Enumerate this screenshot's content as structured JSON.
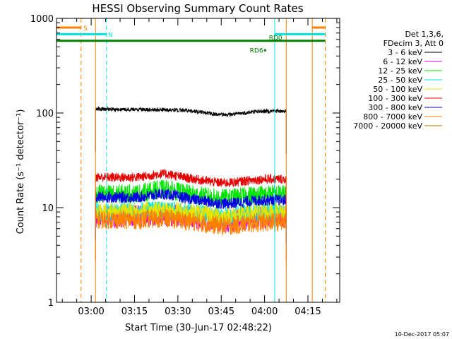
{
  "chart_data": {
    "type": "line",
    "title": "HESSI Observing Summary Count Rates",
    "xlabel": "Start Time (30-Jun-17 02:48:22)",
    "ylabel": "Count Rate (s⁻¹ detector⁻¹)",
    "yscale": "log",
    "ylim": [
      1,
      1000
    ],
    "xlim_minutes_after_02_48": [
      0,
      98
    ],
    "y_ticks": [
      "1",
      "10",
      "100",
      "1000"
    ],
    "x_ticks": [
      {
        "label": "03:00",
        "min": 12
      },
      {
        "label": "03:15",
        "min": 27
      },
      {
        "label": "03:30",
        "min": 42
      },
      {
        "label": "03:45",
        "min": 57
      },
      {
        "label": "04:00",
        "min": 72
      },
      {
        "label": "04:15",
        "min": 87
      }
    ],
    "legend": {
      "placement": "right",
      "header": [
        "Det 1,3,6,",
        "FDecim 3, Att 0"
      ],
      "entries": [
        {
          "label": "3 - 6 keV",
          "color": "#000000"
        },
        {
          "label": "6 - 12 keV",
          "color": "#e400e4"
        },
        {
          "label": "12 - 25 keV",
          "color": "#00e400"
        },
        {
          "label": "25 - 50 keV",
          "color": "#00e4e4"
        },
        {
          "label": "50 - 100 keV",
          "color": "#e4e400"
        },
        {
          "label": "100 - 300 keV",
          "color": "#e40000"
        },
        {
          "label": "300 - 800 keV",
          "color": "#0000e4"
        },
        {
          "label": "800 - 7000 keV",
          "color": "#ff8000"
        },
        {
          "label": "7000 - 20000 keV",
          "color": "#b07800"
        }
      ]
    },
    "series": [
      {
        "band": "3 - 6 keV",
        "color": "#000000",
        "level_start": 110,
        "level_end": 105,
        "noise": 0.02,
        "bump": 0
      },
      {
        "band": "6 - 12 keV",
        "color": "#e400e4",
        "level_start": 8,
        "level_end": 8,
        "noise": 0.12,
        "bump": 0.05
      },
      {
        "band": "12 - 25 keV",
        "color": "#00e400",
        "level_start": 14,
        "level_end": 14,
        "noise": 0.1,
        "bump": 0.12
      },
      {
        "band": "25 - 50 keV",
        "color": "#00e4e4",
        "level_start": 9,
        "level_end": 9,
        "noise": 0.1,
        "bump": 0.05
      },
      {
        "band": "50 - 100 keV",
        "color": "#e4e400",
        "level_start": 9,
        "level_end": 9,
        "noise": 0.1,
        "bump": 0.05
      },
      {
        "band": "100 - 300 keV",
        "color": "#e40000",
        "level_start": 21,
        "level_end": 20,
        "noise": 0.05,
        "bump": 0.1
      },
      {
        "band": "300 - 800 keV",
        "color": "#0000e4",
        "level_start": 13,
        "level_end": 12,
        "noise": 0.06,
        "bump": 0.1
      },
      {
        "band": "800 - 7000 keV",
        "color": "#ff8000",
        "level_start": 7.5,
        "level_end": 7,
        "noise": 0.1,
        "bump": 0.05
      }
    ],
    "data_interval_min": [
      13.5,
      79.5
    ],
    "bump_peak_min": 37,
    "vertical_markers": [
      {
        "min": 0,
        "color": "#00e4e4",
        "style": "solid"
      },
      {
        "min": 8.5,
        "color": "#ff8000",
        "style": "dashed"
      },
      {
        "min": 13.5,
        "color": "#ff8000",
        "style": "solid"
      },
      {
        "min": 17.3,
        "color": "#00e4e4",
        "style": "dashed"
      },
      {
        "min": 75.5,
        "color": "#00e4e4",
        "style": "solid"
      },
      {
        "min": 79.5,
        "color": "#ff8000",
        "style": "solid"
      },
      {
        "min": 88.5,
        "color": "#ff8000",
        "style": "solid"
      },
      {
        "min": 93,
        "color": "#ff8000",
        "style": "dashed"
      }
    ],
    "flag_bars": [
      {
        "label": "S",
        "color": "#ff8000",
        "y": 800,
        "segments": [
          [
            0,
            8.5
          ],
          [
            88.5,
            93
          ]
        ]
      },
      {
        "label": "N",
        "color": "#00e4e4",
        "y": 680,
        "segments": [
          [
            0,
            17.3
          ],
          [
            75.5,
            93
          ]
        ]
      },
      {
        "label": "RD0",
        "color": "#008000",
        "y": 580,
        "segments": [
          [
            0,
            93
          ]
        ]
      }
    ],
    "annotations": [
      {
        "text": "S",
        "color": "#ff8000"
      },
      {
        "text": "N",
        "color": "#00e4e4"
      },
      {
        "text": "RD0",
        "color": "#008000"
      },
      {
        "text": "RD6",
        "color": "#008000"
      }
    ],
    "footer_date": "10-Dec-2017 05:07"
  }
}
